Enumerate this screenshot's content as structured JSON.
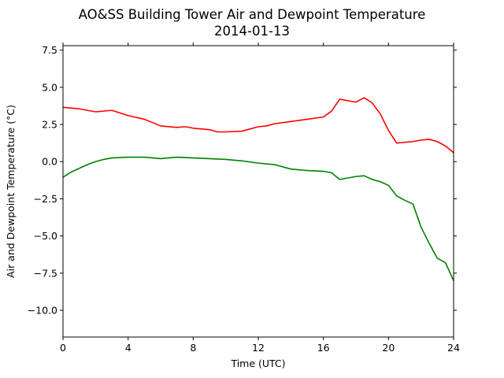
{
  "chart_data": {
    "type": "line",
    "title": "AO&SS Building Tower Air and Dewpoint Temperature",
    "subtitle": "2014-01-13",
    "xlabel": "Time (UTC)",
    "ylabel": "Air and Dewpoint Temperature (°C)",
    "xlim": [
      0,
      24
    ],
    "ylim": [
      -11.8,
      7.8
    ],
    "xticks": [
      0,
      4,
      8,
      12,
      16,
      20,
      24
    ],
    "xtick_labels": [
      "0",
      "4",
      "8",
      "12",
      "16",
      "20",
      "24"
    ],
    "yticks": [
      7.5,
      5.0,
      2.5,
      0.0,
      -2.5,
      -5.0,
      -7.5,
      -10.0
    ],
    "ytick_labels": [
      "7.5",
      "5.0",
      "2.5",
      "0.0",
      "−2.5",
      "−5.0",
      "−7.5",
      "−10.0"
    ],
    "grid": false,
    "series": [
      {
        "color": "#ff0000",
        "x": [
          0,
          1,
          2,
          3,
          4,
          5,
          6,
          7,
          7.5,
          8,
          9,
          9.5,
          10,
          11,
          12,
          12.5,
          13,
          14,
          15,
          16,
          16.5,
          17,
          17.5,
          18,
          18.5,
          19,
          19.5,
          20,
          20.5,
          21,
          21.5,
          22,
          22.5,
          23,
          23.5,
          24
        ],
        "values": [
          3.65,
          3.55,
          3.35,
          3.45,
          3.1,
          2.85,
          2.4,
          2.3,
          2.35,
          2.25,
          2.15,
          2.0,
          2.0,
          2.05,
          2.35,
          2.4,
          2.55,
          2.7,
          2.85,
          3.0,
          3.4,
          4.2,
          4.1,
          4.0,
          4.3,
          3.95,
          3.2,
          2.1,
          1.25,
          1.3,
          1.35,
          1.45,
          1.5,
          1.35,
          1.05,
          0.6
        ]
      },
      {
        "color": "#008000",
        "x": [
          0,
          0.5,
          1,
          1.5,
          2,
          2.5,
          3,
          4,
          5,
          6,
          7,
          8,
          9,
          10,
          11,
          12,
          13,
          14,
          15,
          16,
          16.5,
          17,
          17.5,
          18,
          18.5,
          19,
          19.5,
          20,
          20.5,
          21,
          21.5,
          22,
          22.5,
          23,
          23.5,
          24
        ],
        "values": [
          -1.05,
          -0.7,
          -0.45,
          -0.2,
          0.0,
          0.15,
          0.25,
          0.3,
          0.3,
          0.2,
          0.3,
          0.25,
          0.2,
          0.15,
          0.05,
          -0.1,
          -0.2,
          -0.5,
          -0.6,
          -0.65,
          -0.75,
          -1.2,
          -1.1,
          -1.0,
          -0.95,
          -1.2,
          -1.35,
          -1.6,
          -2.3,
          -2.6,
          -2.85,
          -4.4,
          -5.5,
          -6.5,
          -6.8,
          -8.0
        ]
      }
    ]
  }
}
